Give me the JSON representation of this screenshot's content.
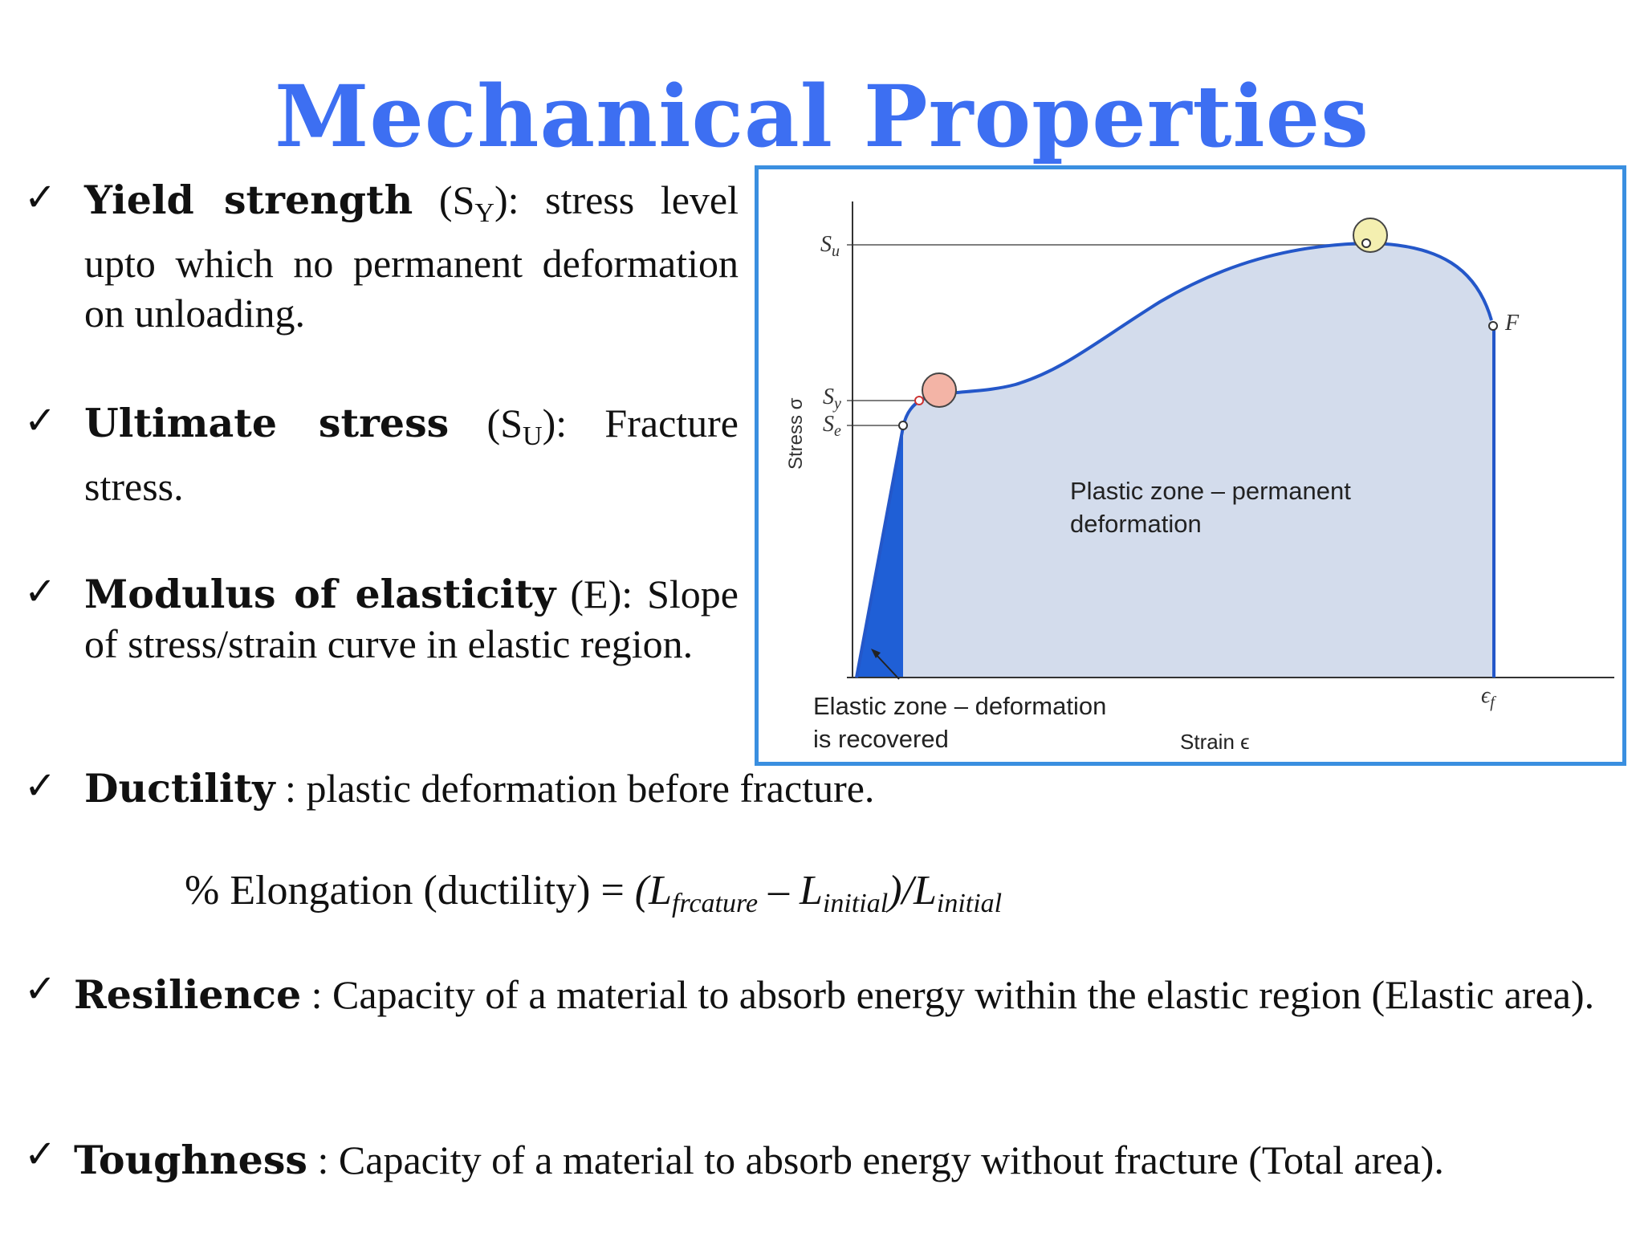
{
  "title": "Mechanical Properties",
  "bullets": {
    "yield": {
      "term": "Yield strength",
      "symbol_open": " (S",
      "symbol_sub": "Y",
      "rest": "): stress level upto which no permanent deformation on unloading."
    },
    "ultimate": {
      "term": "Ultimate stress",
      "symbol_open": " (S",
      "symbol_sub": "U",
      "rest": "): Fracture stress."
    },
    "modulus": {
      "term": "Modulus of elasticity",
      "rest": " (E): Slope of stress/strain curve in elastic region."
    },
    "ductility": {
      "term": "Ductility",
      "rest": " : plastic deformation before fracture."
    },
    "resilience": {
      "term": "Resilience",
      "rest": " : Capacity of a material to absorb energy within the elastic region (Elastic area)."
    },
    "toughness": {
      "term": "Toughness",
      "rest": " : Capacity of a material to absorb energy without fracture (Total area)."
    }
  },
  "formula": {
    "prefix": "% Elongation (ductility) = ",
    "open": "(L",
    "sub1": "frcature",
    "minus": " – L",
    "sub2": "initial",
    "div": ")/L",
    "sub3": "initial"
  },
  "figure": {
    "y_axis_label": "Stress σ",
    "x_axis_label": "Strain ϵ",
    "su_label": "S",
    "su_sub": "u",
    "sy_label": "S",
    "sy_sub": "y",
    "se_label": "S",
    "se_sub": "e",
    "f_label": "F",
    "ef_label": "ϵ",
    "ef_sub": "f",
    "plastic_zone_line1": "Plastic zone – permanent",
    "plastic_zone_line2": "deformation",
    "elastic_zone_line1": "Elastic zone – deformation",
    "elastic_zone_line2": "is recovered",
    "colors": {
      "border": "#3a8fe0",
      "plastic_fill": "#d3dcec",
      "elastic_fill": "#1f5fd6",
      "curve": "#2457c9",
      "yield_marker": "#f3b4a6",
      "ultimate_marker": "#f4efb0"
    }
  }
}
